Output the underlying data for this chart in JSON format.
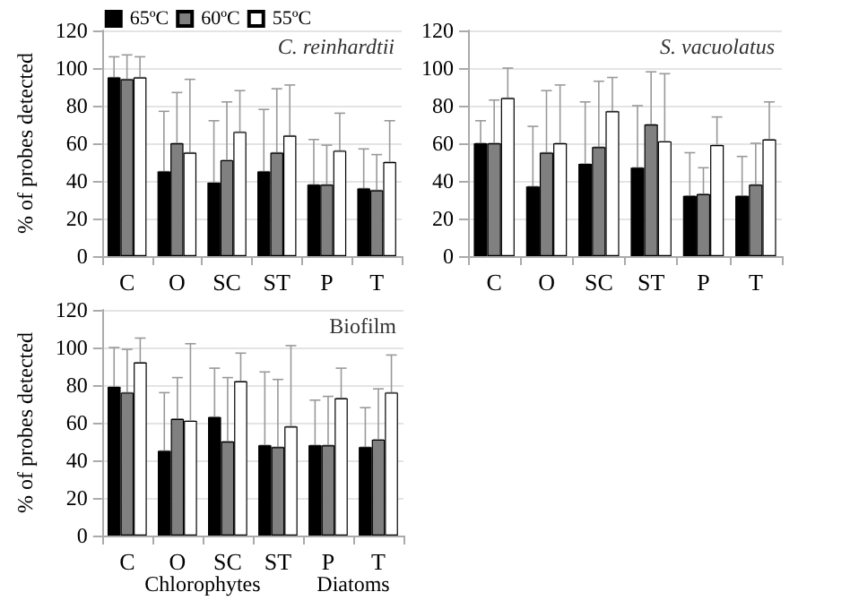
{
  "chart_data": [
    {
      "type": "bar",
      "title": "C. reinhardtii",
      "ylabel": "% of probes detected",
      "categories": [
        "C",
        "O",
        "SC",
        "ST",
        "P",
        "T"
      ],
      "series": [
        {
          "name": "65ºC",
          "color": "#000000",
          "values": [
            95,
            45,
            39,
            45,
            38,
            36
          ],
          "errors": [
            [
              95,
              106
            ],
            [
              45,
              77
            ],
            [
              39,
              72
            ],
            [
              45,
              78
            ],
            [
              38,
              62
            ],
            [
              36,
              57
            ]
          ]
        },
        {
          "name": "60ºC",
          "color": "#808080",
          "values": [
            94,
            60,
            51,
            55,
            38,
            35
          ],
          "errors": [
            [
              94,
              107
            ],
            [
              60,
              87
            ],
            [
              51,
              82
            ],
            [
              55,
              89
            ],
            [
              38,
              59
            ],
            [
              35,
              54
            ]
          ]
        },
        {
          "name": "55ºC",
          "color": "#ffffff",
          "values": [
            95,
            55,
            66,
            64,
            56,
            50
          ],
          "errors": [
            [
              95,
              106
            ],
            [
              55,
              94
            ],
            [
              66,
              88
            ],
            [
              64,
              91
            ],
            [
              56,
              76
            ],
            [
              50,
              72
            ]
          ]
        }
      ],
      "ylim": [
        0,
        120
      ],
      "yticks": [
        0,
        20,
        40,
        60,
        80,
        100,
        120
      ],
      "grid": "y",
      "legend": "top"
    },
    {
      "type": "bar",
      "title": "S. vacuolatus",
      "categories": [
        "C",
        "O",
        "SC",
        "ST",
        "P",
        "T"
      ],
      "series": [
        {
          "color": "#000000",
          "values": [
            60,
            37,
            49,
            47,
            32,
            32
          ],
          "errors": [
            [
              60,
              72
            ],
            [
              37,
              69
            ],
            [
              49,
              82
            ],
            [
              47,
              80
            ],
            [
              32,
              55
            ],
            [
              32,
              53
            ]
          ]
        },
        {
          "color": "#808080",
          "values": [
            60,
            55,
            58,
            70,
            33,
            38
          ],
          "errors": [
            [
              60,
              83
            ],
            [
              55,
              88
            ],
            [
              58,
              93
            ],
            [
              70,
              98
            ],
            [
              33,
              47
            ],
            [
              38,
              60
            ]
          ]
        },
        {
          "color": "#ffffff",
          "values": [
            84,
            60,
            77,
            61,
            59,
            62
          ],
          "errors": [
            [
              84,
              100
            ],
            [
              60,
              91
            ],
            [
              77,
              95
            ],
            [
              61,
              97
            ],
            [
              59,
              74
            ],
            [
              62,
              82
            ]
          ]
        }
      ],
      "ylim": [
        0,
        120
      ],
      "yticks": [
        0,
        20,
        40,
        60,
        80,
        100,
        120
      ],
      "grid": "y",
      "legend": false
    },
    {
      "type": "bar",
      "title": "Biofilm",
      "ylabel": "% of probes detected",
      "categories": [
        "C",
        "O",
        "SC",
        "ST",
        "P",
        "T"
      ],
      "series": [
        {
          "color": "#000000",
          "values": [
            79,
            45,
            63,
            48,
            48,
            47
          ],
          "errors": [
            [
              79,
              100
            ],
            [
              45,
              76
            ],
            [
              63,
              89
            ],
            [
              48,
              87
            ],
            [
              48,
              72
            ],
            [
              47,
              68
            ]
          ]
        },
        {
          "color": "#808080",
          "values": [
            76,
            62,
            50,
            47,
            48,
            51
          ],
          "errors": [
            [
              76,
              99
            ],
            [
              62,
              84
            ],
            [
              50,
              84
            ],
            [
              47,
              83
            ],
            [
              48,
              74
            ],
            [
              51,
              78
            ]
          ]
        },
        {
          "color": "#ffffff",
          "values": [
            92,
            61,
            82,
            58,
            73,
            76
          ],
          "errors": [
            [
              92,
              105
            ],
            [
              61,
              102
            ],
            [
              82,
              97
            ],
            [
              58,
              101
            ],
            [
              73,
              89
            ],
            [
              76,
              96
            ]
          ]
        }
      ],
      "ylim": [
        0,
        120
      ],
      "yticks": [
        0,
        20,
        40,
        60,
        80,
        100,
        120
      ],
      "grid": "y",
      "legend": false,
      "annotations": [
        "Chlorophytes",
        "Diatoms"
      ]
    }
  ]
}
